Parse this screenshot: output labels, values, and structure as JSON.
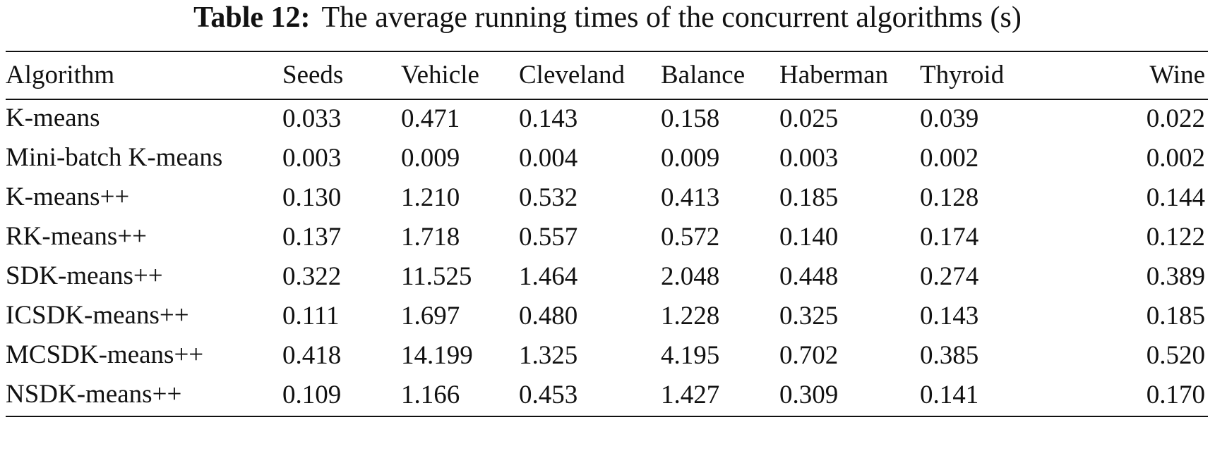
{
  "caption": {
    "label": "Table 12:",
    "text": "The average running times of the concurrent algorithms (s)"
  },
  "table": {
    "headers": [
      "Algorithm",
      "Seeds",
      "Vehicle",
      "Cleveland",
      "Balance",
      "Haberman",
      "Thyroid",
      "Wine"
    ],
    "rows": [
      {
        "algorithm": "K-means",
        "values": [
          "0.033",
          "0.471",
          "0.143",
          "0.158",
          "0.025",
          "0.039",
          "0.022"
        ]
      },
      {
        "algorithm": "Mini-batch K-means",
        "values": [
          "0.003",
          "0.009",
          "0.004",
          "0.009",
          "0.003",
          "0.002",
          "0.002"
        ]
      },
      {
        "algorithm": "K-means++",
        "values": [
          "0.130",
          "1.210",
          "0.532",
          "0.413",
          "0.185",
          "0.128",
          "0.144"
        ]
      },
      {
        "algorithm": "RK-means++",
        "values": [
          "0.137",
          "1.718",
          "0.557",
          "0.572",
          "0.140",
          "0.174",
          "0.122"
        ]
      },
      {
        "algorithm": "SDK-means++",
        "values": [
          "0.322",
          "11.525",
          "1.464",
          "2.048",
          "0.448",
          "0.274",
          "0.389"
        ]
      },
      {
        "algorithm": "ICSDK-means++",
        "values": [
          "0.111",
          "1.697",
          "0.480",
          "1.228",
          "0.325",
          "0.143",
          "0.185"
        ]
      },
      {
        "algorithm": "MCSDK-means++",
        "values": [
          "0.418",
          "14.199",
          "1.325",
          "4.195",
          "0.702",
          "0.385",
          "0.520"
        ]
      },
      {
        "algorithm": "NSDK-means++",
        "values": [
          "0.109",
          "1.166",
          "0.453",
          "1.427",
          "0.309",
          "0.141",
          "0.170"
        ]
      }
    ]
  }
}
